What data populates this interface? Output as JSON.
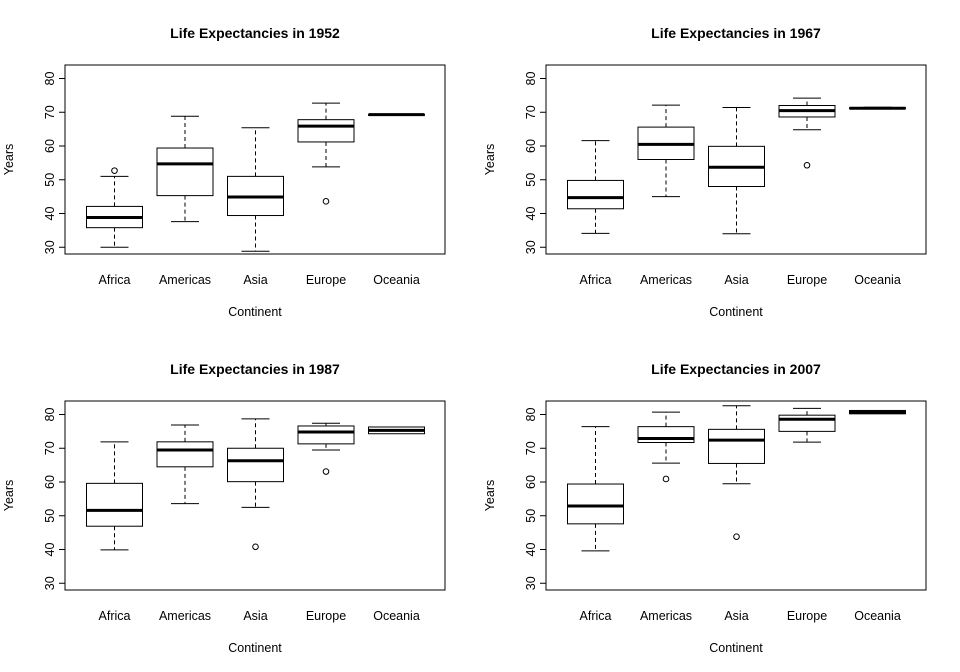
{
  "chart_data": [
    {
      "type": "box",
      "title": "Life Expectancies in 1952",
      "xlabel": "Continent",
      "ylabel": "Years",
      "ylim": [
        28,
        84
      ],
      "yticks": [
        30,
        40,
        50,
        60,
        70,
        80
      ],
      "categories": [
        "Africa",
        "Americas",
        "Asia",
        "Europe",
        "Oceania"
      ],
      "boxes": [
        {
          "min": 30.0,
          "q1": 35.8,
          "median": 38.8,
          "q3": 42.1,
          "max": 51.0,
          "outliers": [
            52.7
          ]
        },
        {
          "min": 37.6,
          "q1": 45.3,
          "median": 54.7,
          "q3": 59.4,
          "max": 68.8,
          "outliers": []
        },
        {
          "min": 28.8,
          "q1": 39.4,
          "median": 44.9,
          "q3": 51.0,
          "max": 65.4,
          "outliers": []
        },
        {
          "min": 53.8,
          "q1": 61.2,
          "median": 65.9,
          "q3": 67.8,
          "max": 72.7,
          "outliers": [
            43.6
          ]
        },
        {
          "min": 69.1,
          "q1": 69.1,
          "median": 69.3,
          "q3": 69.3,
          "max": 69.4,
          "outliers": []
        }
      ]
    },
    {
      "type": "box",
      "title": "Life Expectancies in 1967",
      "xlabel": "Continent",
      "ylabel": "Years",
      "ylim": [
        28,
        84
      ],
      "yticks": [
        30,
        40,
        50,
        60,
        70,
        80
      ],
      "categories": [
        "Africa",
        "Americas",
        "Asia",
        "Europe",
        "Oceania"
      ],
      "boxes": [
        {
          "min": 34.1,
          "q1": 41.4,
          "median": 44.7,
          "q3": 49.8,
          "max": 61.6,
          "outliers": []
        },
        {
          "min": 45.0,
          "q1": 56.0,
          "median": 60.5,
          "q3": 65.6,
          "max": 72.1,
          "outliers": []
        },
        {
          "min": 34.0,
          "q1": 48.0,
          "median": 53.7,
          "q3": 59.9,
          "max": 71.4,
          "outliers": []
        },
        {
          "min": 64.8,
          "q1": 68.6,
          "median": 70.5,
          "q3": 72.0,
          "max": 74.2,
          "outliers": [
            54.3
          ]
        },
        {
          "min": 71.1,
          "q1": 71.1,
          "median": 71.2,
          "q3": 71.3,
          "max": 71.5,
          "outliers": []
        }
      ]
    },
    {
      "type": "box",
      "title": "Life Expectancies in 1987",
      "xlabel": "Continent",
      "ylabel": "Years",
      "ylim": [
        28,
        84
      ],
      "yticks": [
        30,
        40,
        50,
        60,
        70,
        80
      ],
      "categories": [
        "Africa",
        "Americas",
        "Asia",
        "Europe",
        "Oceania"
      ],
      "boxes": [
        {
          "min": 39.9,
          "q1": 46.9,
          "median": 51.6,
          "q3": 59.6,
          "max": 71.9,
          "outliers": []
        },
        {
          "min": 53.6,
          "q1": 64.5,
          "median": 69.5,
          "q3": 71.9,
          "max": 76.9,
          "outliers": []
        },
        {
          "min": 52.5,
          "q1": 60.1,
          "median": 66.3,
          "q3": 70.0,
          "max": 78.7,
          "outliers": [
            40.8
          ]
        },
        {
          "min": 69.5,
          "q1": 71.3,
          "median": 74.8,
          "q3": 76.6,
          "max": 77.4,
          "outliers": [
            63.1
          ]
        },
        {
          "min": 74.3,
          "q1": 74.3,
          "median": 75.3,
          "q3": 76.3,
          "max": 76.3,
          "outliers": []
        }
      ]
    },
    {
      "type": "box",
      "title": "Life Expectancies in 2007",
      "xlabel": "Continent",
      "ylabel": "Years",
      "ylim": [
        28,
        84
      ],
      "yticks": [
        30,
        40,
        50,
        60,
        70,
        80
      ],
      "categories": [
        "Africa",
        "Americas",
        "Asia",
        "Europe",
        "Oceania"
      ],
      "boxes": [
        {
          "min": 39.6,
          "q1": 47.6,
          "median": 52.9,
          "q3": 59.4,
          "max": 76.4,
          "outliers": []
        },
        {
          "min": 65.6,
          "q1": 71.7,
          "median": 72.9,
          "q3": 76.4,
          "max": 80.7,
          "outliers": [
            60.9
          ]
        },
        {
          "min": 59.5,
          "q1": 65.5,
          "median": 72.4,
          "q3": 75.6,
          "max": 82.6,
          "outliers": [
            43.8
          ]
        },
        {
          "min": 71.8,
          "q1": 75.0,
          "median": 78.6,
          "q3": 79.8,
          "max": 81.8,
          "outliers": []
        },
        {
          "min": 80.2,
          "q1": 80.2,
          "median": 80.7,
          "q3": 81.2,
          "max": 81.2,
          "outliers": []
        }
      ]
    }
  ]
}
